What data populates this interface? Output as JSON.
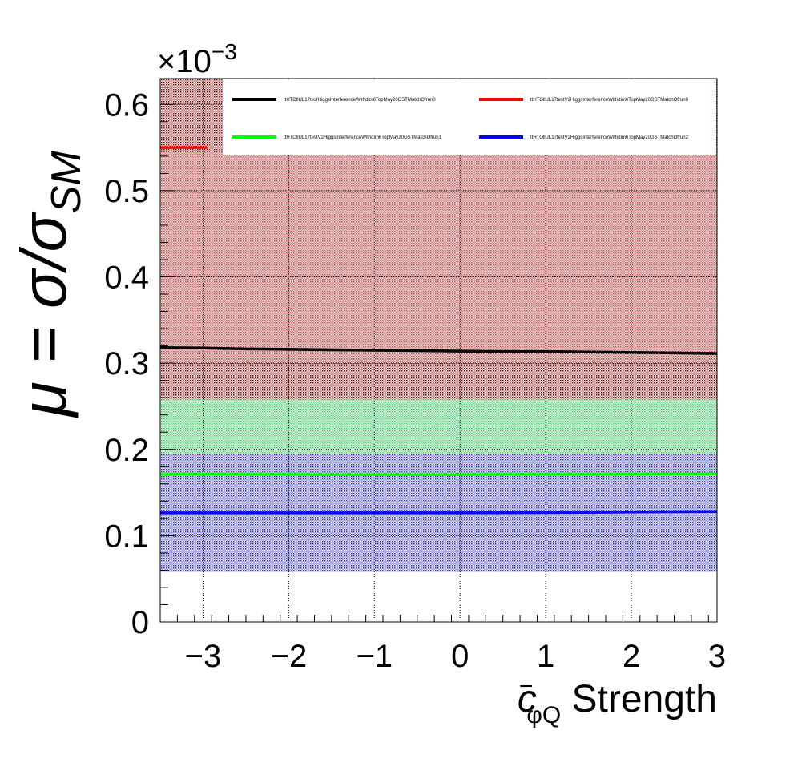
{
  "chart_data": {
    "type": "line",
    "xlabel": {
      "main": "c",
      "superscript": "−",
      "subscript": "φQ",
      "suffix": " Strength"
    },
    "ylabel": {
      "main": "μ = σ/σ",
      "subscript": "SM"
    },
    "y_multiplier": {
      "prefix": "×10",
      "exponent": "−3"
    },
    "xlim": [
      -3.5,
      3.0
    ],
    "ylim": [
      0,
      0.00063
    ],
    "x_ticks": [
      -3,
      -2,
      -1,
      0,
      1,
      2,
      3
    ],
    "x_tick_labels": [
      "−3",
      "−2",
      "−1",
      "0",
      "1",
      "2",
      "3"
    ],
    "y_ticks": [
      0,
      0.0001,
      0.0002,
      0.0003,
      0.0004,
      0.0005,
      0.0006
    ],
    "y_tick_labels": [
      "0",
      "0.1",
      "0.2",
      "0.3",
      "0.4",
      "0.5",
      "0.6"
    ],
    "grid": true,
    "legend_placement": "top",
    "x": [
      -3.5,
      -3.0,
      -2.5,
      -2.0,
      -1.5,
      -1.0,
      -0.5,
      0.0,
      0.5,
      1.0,
      1.5,
      2.0,
      2.5,
      3.0
    ],
    "series": [
      {
        "name": "ttHTOllUL17testHiggsInterferenceWithdim6TopMay20GSTMatchOfrun0",
        "color": "#000000",
        "values": [
          0.000318,
          0.0003175,
          0.0003165,
          0.000316,
          0.0003155,
          0.000315,
          0.0003145,
          0.000314,
          0.0003135,
          0.0003135,
          0.000313,
          0.0003125,
          0.0003118,
          0.0003112
        ],
        "band": [
          0.0,
          0.00063
        ],
        "band_color": "#5a0000"
      },
      {
        "name": "ttHTOllUL17testV2HiggsInterferenceWithdim6TopMay20GSTMatchOfrun0",
        "color": "#ff0000",
        "values": [
          0.00055,
          0.00055,
          0.00055,
          0.00055,
          0.00055,
          0.00055,
          0.00055,
          0.00055,
          0.00055,
          0.00055,
          0.00055,
          0.00055,
          0.00055,
          0.00055
        ],
        "band": [
          0.000305,
          0.000545
        ],
        "band_color": "#ff8080"
      },
      {
        "name": "ttHTOllUL17testV2HiggsInterferenceWithdim6TopMay20GSTMatchOfrun1",
        "color": "#00ff00",
        "values": [
          0.000171,
          0.0001712,
          0.000171,
          0.000171,
          0.0001708,
          0.0001708,
          0.0001708,
          0.0001708,
          0.000171,
          0.000171,
          0.000171,
          0.0001712,
          0.0001715,
          0.0001718
        ],
        "band": [
          0.000195,
          0.000258
        ],
        "band_color": "#40ff60"
      },
      {
        "name": "ttHTOllUL17testV2HiggsInterferenceWithdim6TopMay20GSTMatchOfrun2",
        "color": "#0000ff",
        "values": [
          0.0001265,
          0.0001265,
          0.0001265,
          0.0001265,
          0.0001265,
          0.0001265,
          0.0001265,
          0.0001265,
          0.0001266,
          0.0001268,
          0.0001271,
          0.0001275,
          0.0001278,
          0.000128
        ],
        "band": [
          5.8e-05,
          0.000195
        ],
        "band_color": "#2020c0"
      }
    ]
  }
}
